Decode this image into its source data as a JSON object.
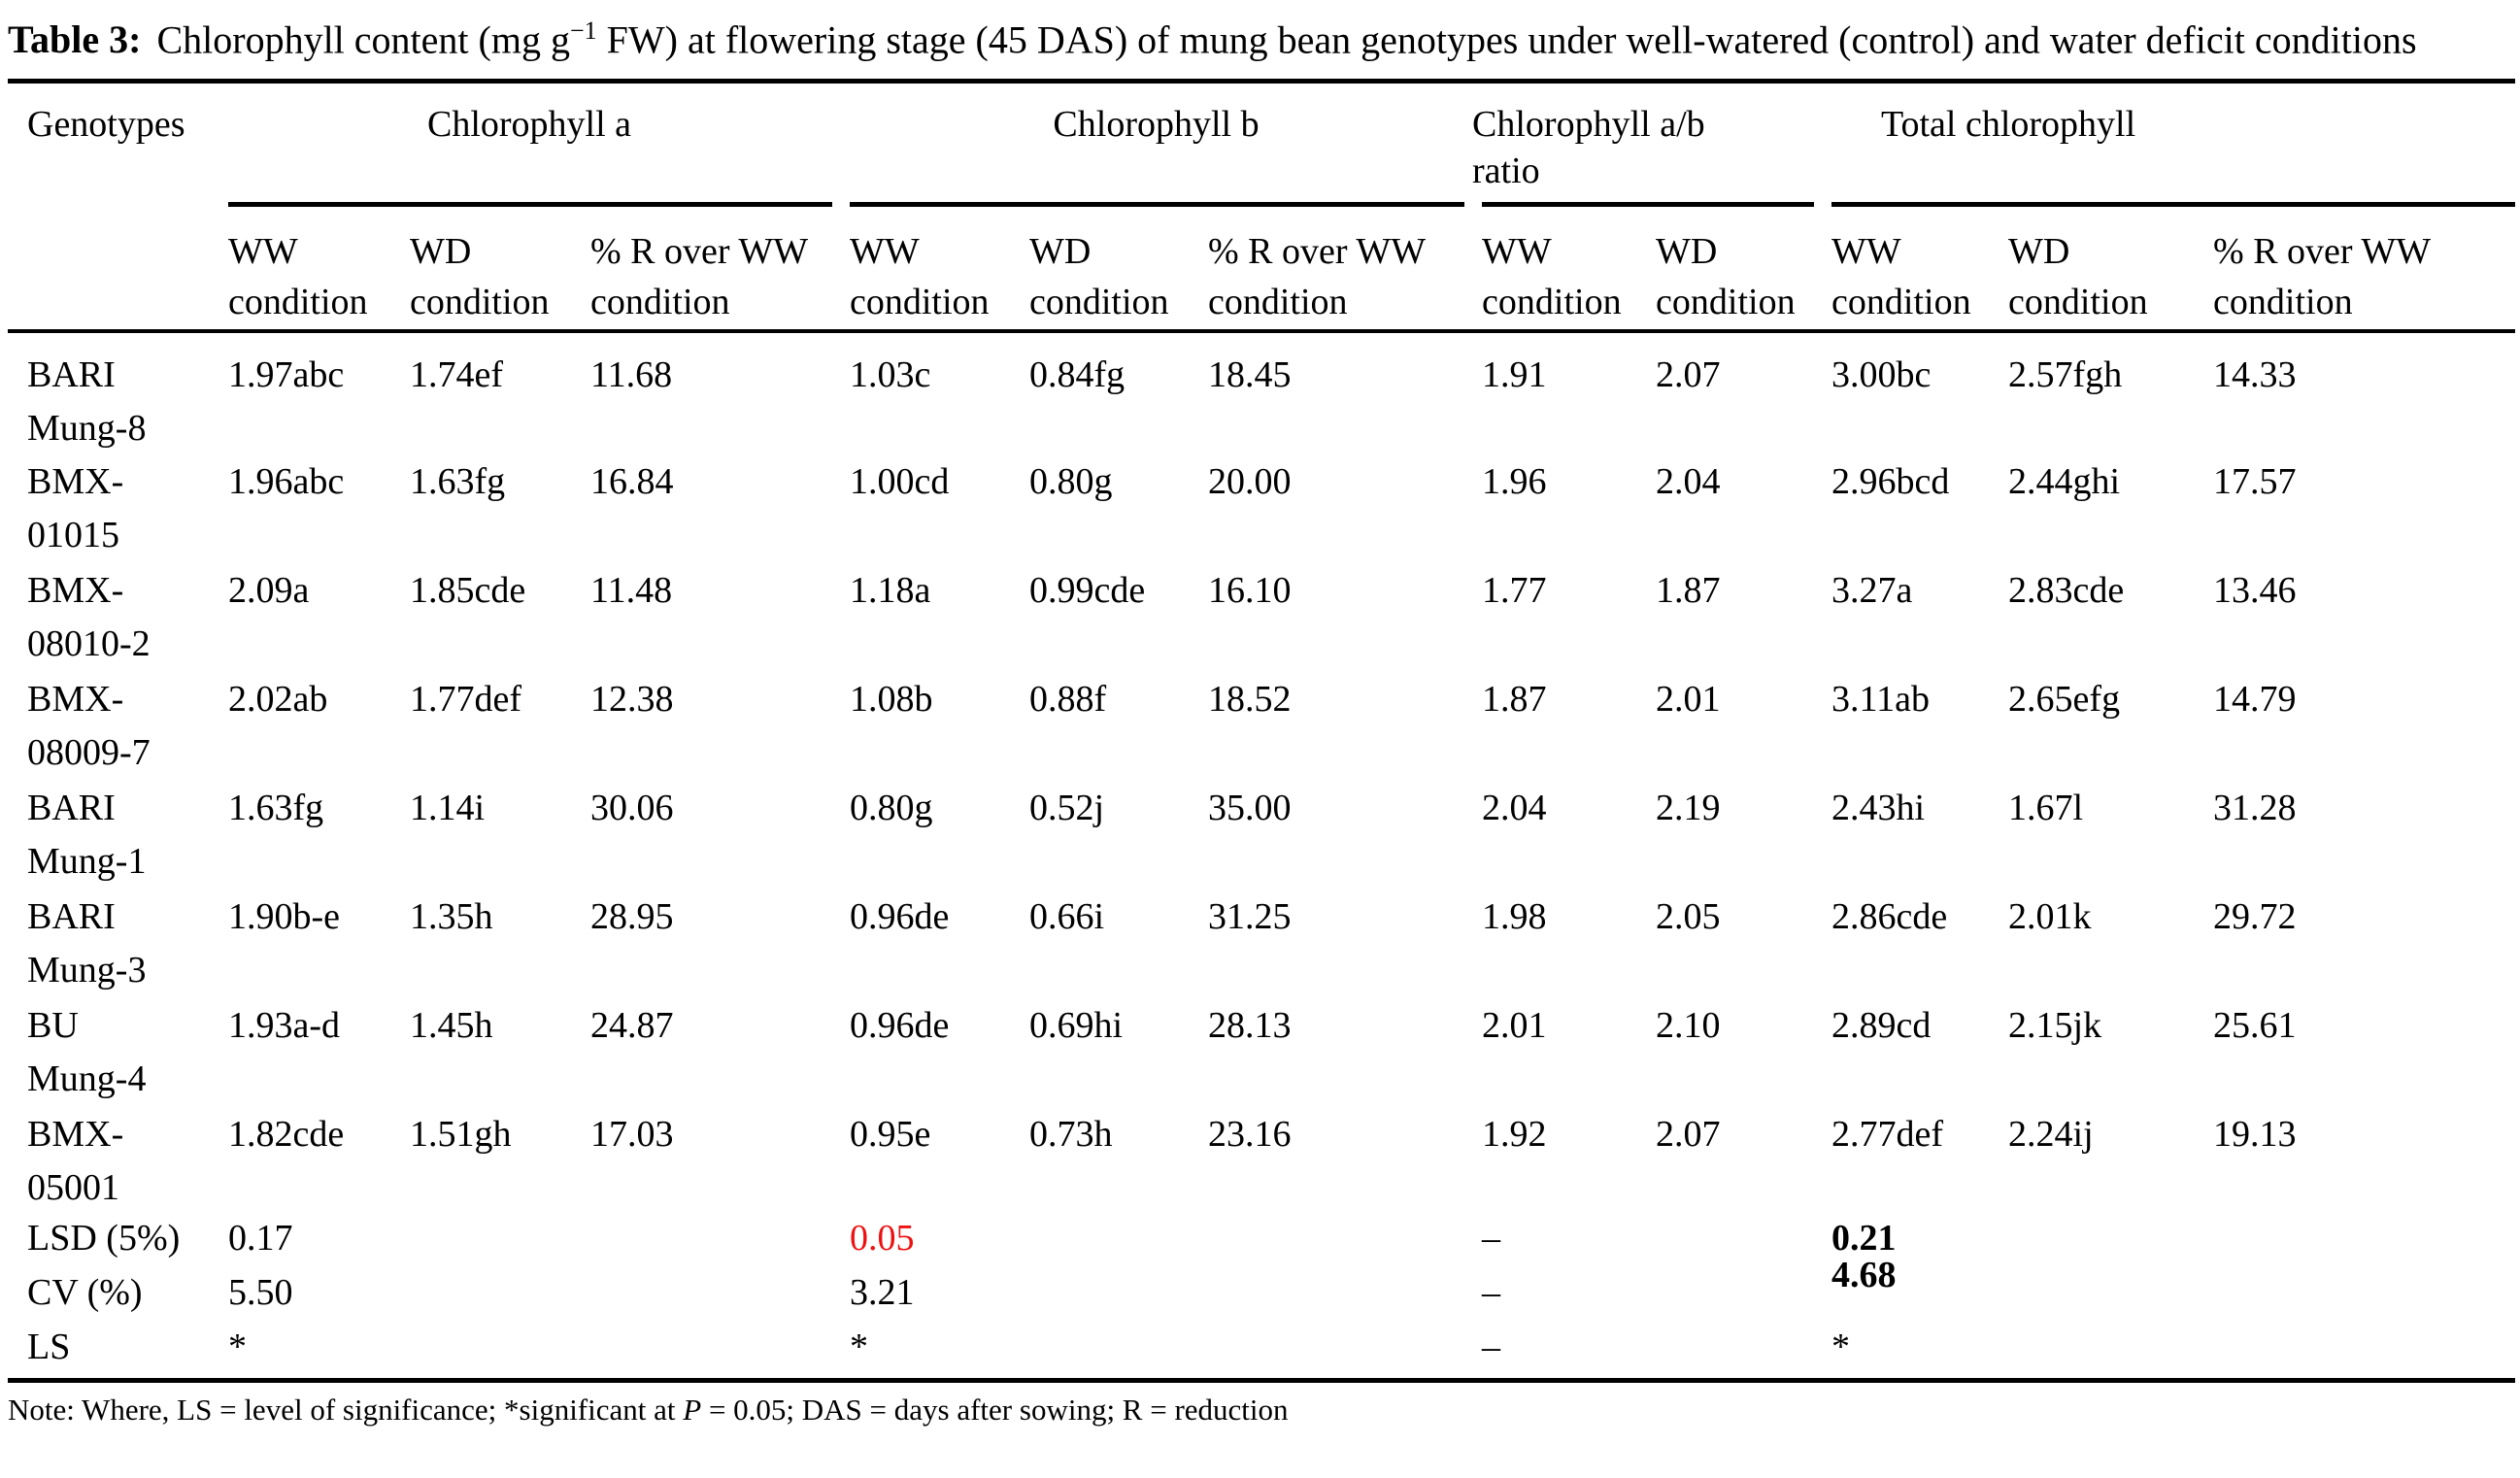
{
  "caption": {
    "label": "Table 3:",
    "before_sup": "Chlorophyll content (mg g",
    "sup": "−1",
    "after_sup": " FW) at flowering stage (45 DAS) of mung bean genotypes under well-watered (control) and water deficit conditions"
  },
  "table": {
    "row_header": "Genotypes",
    "groups": [
      {
        "label": "Chlorophyll a",
        "columns": [
          "WW condition",
          "WD condition",
          "% R over WW condition"
        ]
      },
      {
        "label": "Chlorophyll b",
        "columns": [
          "WW condition",
          "WD condition",
          "% R over WW condition"
        ]
      },
      {
        "label": "Chlorophyll a/b ratio",
        "columns": [
          "WW condition",
          "WD condition"
        ]
      },
      {
        "label": "Total chlorophyll",
        "columns": [
          "WW condition",
          "WD condition",
          "% R over WW condition"
        ]
      }
    ],
    "rows": [
      {
        "genotype": "BARI Mung-8",
        "values": [
          "1.97abc",
          "1.74ef",
          "11.68",
          "1.03c",
          "0.84fg",
          "18.45",
          "1.91",
          "2.07",
          "3.00bc",
          "2.57fgh",
          "14.33"
        ]
      },
      {
        "genotype": "BMX-01015",
        "values": [
          "1.96abc",
          "1.63fg",
          "16.84",
          "1.00cd",
          "0.80g",
          "20.00",
          "1.96",
          "2.04",
          "2.96bcd",
          "2.44ghi",
          "17.57"
        ]
      },
      {
        "genotype": "BMX-08010-2",
        "values": [
          "2.09a",
          "1.85cde",
          "11.48",
          "1.18a",
          "0.99cde",
          "16.10",
          "1.77",
          "1.87",
          "3.27a",
          "2.83cde",
          "13.46"
        ]
      },
      {
        "genotype": "BMX-08009-7",
        "values": [
          "2.02ab",
          "1.77def",
          "12.38",
          "1.08b",
          "0.88f",
          "18.52",
          "1.87",
          "2.01",
          "3.11ab",
          "2.65efg",
          "14.79"
        ]
      },
      {
        "genotype": "BARI Mung-1",
        "values": [
          "1.63fg",
          "1.14i",
          "30.06",
          "0.80g",
          "0.52j",
          "35.00",
          "2.04",
          "2.19",
          "2.43hi",
          "1.67l",
          "31.28"
        ]
      },
      {
        "genotype": "BARI Mung-3",
        "values": [
          "1.90b-e",
          "1.35h",
          "28.95",
          "0.96de",
          "0.66i",
          "31.25",
          "1.98",
          "2.05",
          "2.86cde",
          "2.01k",
          "29.72"
        ]
      },
      {
        "genotype": "BU Mung-4",
        "values": [
          "1.93a-d",
          "1.45h",
          "24.87",
          "0.96de",
          "0.69hi",
          "28.13",
          "2.01",
          "2.10",
          "2.89cd",
          "2.15jk",
          "25.61"
        ]
      },
      {
        "genotype": "BMX-05001",
        "values": [
          "1.82cde",
          "1.51gh",
          "17.03",
          "0.95e",
          "0.73h",
          "23.16",
          "1.92",
          "2.07",
          "2.77def",
          "2.24ij",
          "19.13"
        ]
      }
    ],
    "stat_rows": [
      {
        "label": "LSD (5%)",
        "cells": [
          {
            "col": 0,
            "text": "0.17"
          },
          {
            "col": 3,
            "text": "0.05",
            "highlight": true
          },
          {
            "col": 6,
            "text": "–"
          },
          {
            "col": 8,
            "text": "0.21",
            "bold": true
          }
        ]
      },
      {
        "label": "CV (%)",
        "cells": [
          {
            "col": 0,
            "text": "5.50"
          },
          {
            "col": 3,
            "text": "3.21"
          },
          {
            "col": 6,
            "text": "–"
          },
          {
            "col": 8,
            "text": "4.68",
            "bold": true
          }
        ]
      },
      {
        "label": "LS",
        "cells": [
          {
            "col": 0,
            "text": "*"
          },
          {
            "col": 3,
            "text": "*"
          },
          {
            "col": 6,
            "text": "–"
          },
          {
            "col": 8,
            "text": "*"
          }
        ]
      }
    ]
  },
  "note": {
    "before_italic": "Note: Where, LS = level of significance; *significant at ",
    "italic": "P",
    "after_italic": " = 0.05; DAS = days after sowing; R = reduction"
  },
  "colors": {
    "text": "#000000",
    "highlight_red": "#ee1111",
    "background": "#ffffff"
  }
}
